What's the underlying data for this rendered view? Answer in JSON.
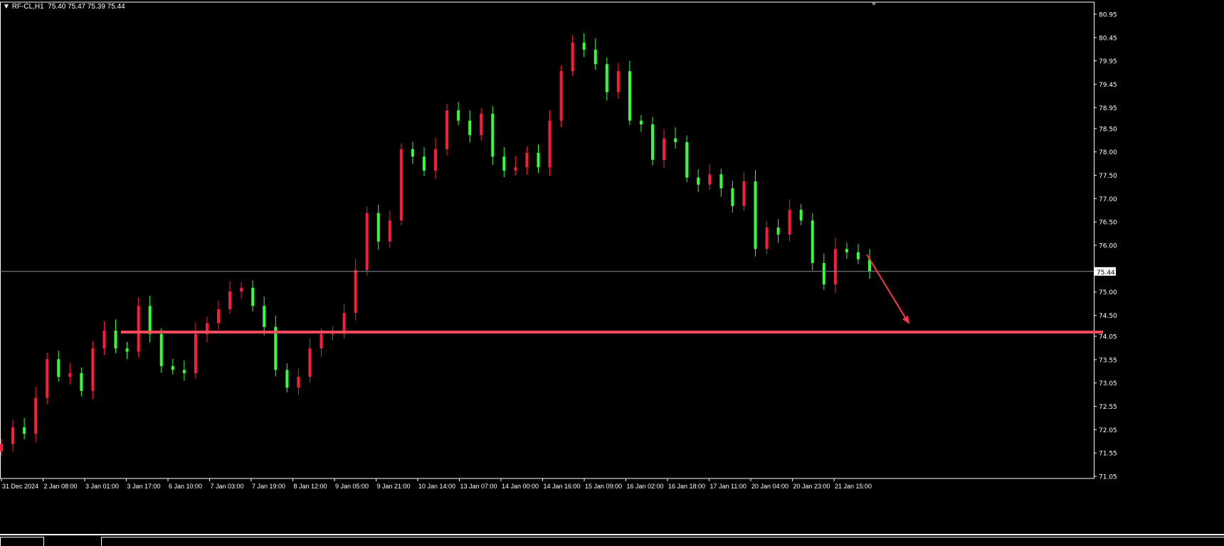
{
  "header": {
    "symbol": "RF-CL,H1",
    "ohlc": "75.40 75.47 75.39 75.44"
  },
  "colors": {
    "background": "#000000",
    "up_candle": "#ff1a3c",
    "down_candle": "#33ff33",
    "axis": "#ffffff",
    "support_line": "#ff4d5e",
    "arrow": "#ff3344",
    "price_line": "#8a9099"
  },
  "chart_data": {
    "type": "candlestick",
    "timeframe": "H1",
    "ylim": [
      71.05,
      80.95
    ],
    "y_ticks": [
      80.95,
      80.45,
      79.95,
      79.45,
      78.95,
      78.5,
      78.0,
      77.5,
      77.0,
      76.5,
      76.0,
      75.0,
      74.5,
      74.05,
      73.55,
      73.05,
      72.55,
      72.05,
      71.55,
      71.05
    ],
    "y_tick_labels": [
      "80.95",
      "80.45",
      "79.95",
      "79.45",
      "78.95",
      "78.50",
      "78.00",
      "77.50",
      "77.00",
      "76.50",
      "76.00",
      "75.00",
      "74.50",
      "74.05",
      "73.55",
      "73.05",
      "72.55",
      "72.05",
      "71.55",
      "71.05"
    ],
    "x_tick_labels": [
      "31 Dec 2024",
      "2 Jan 08:00",
      "3 Jan 01:00",
      "3 Jan 17:00",
      "6 Jan 10:00",
      "7 Jan 03:00",
      "7 Jan 19:00",
      "8 Jan 12:00",
      "9 Jan 05:00",
      "9 Jan 21:00",
      "10 Jan 14:00",
      "13 Jan 07:00",
      "14 Jan 00:00",
      "14 Jan 16:00",
      "15 Jan 09:00",
      "16 Jan 02:00",
      "16 Jan 18:00",
      "17 Jan 11:00",
      "20 Jan 04:00",
      "20 Jan 23:00",
      "21 Jan 15:00"
    ],
    "closes": [
      71.74,
      72.1,
      71.96,
      72.73,
      73.56,
      73.18,
      73.26,
      72.88,
      73.79,
      74.17,
      73.79,
      73.72,
      74.7,
      74.1,
      73.41,
      73.33,
      73.26,
      74.1,
      74.33,
      74.63,
      75.01,
      75.09,
      74.7,
      74.25,
      73.33,
      72.95,
      73.18,
      73.79,
      74.1,
      74.1,
      74.55,
      75.47,
      76.69,
      76.08,
      76.53,
      78.06,
      77.9,
      77.6,
      78.06,
      78.89,
      78.67,
      78.36,
      78.82,
      77.9,
      77.6,
      77.67,
      77.98,
      77.67,
      78.67,
      79.73,
      80.34,
      80.19,
      79.88,
      79.28,
      79.73,
      78.67,
      78.59,
      77.83,
      78.29,
      78.21,
      77.45,
      77.3,
      77.52,
      77.22,
      76.84,
      77.37,
      75.92,
      76.38,
      76.23,
      76.76,
      76.53,
      75.62,
      75.16,
      75.92,
      75.85,
      75.7,
      75.44
    ],
    "current_price": 75.44,
    "current_price_label": "75.44",
    "support_level": 74.14,
    "annotation": "arrow pointing down toward support level",
    "grid": false
  }
}
